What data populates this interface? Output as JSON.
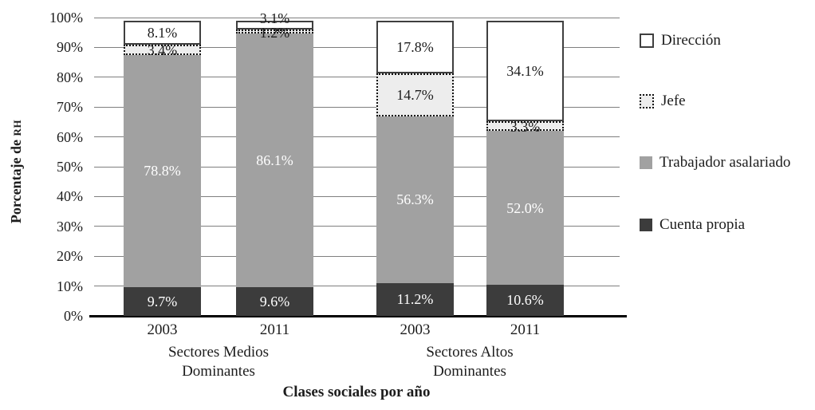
{
  "chart_data": {
    "type": "bar",
    "stacked": true,
    "title": "",
    "xlabel": "Clases sociales por año",
    "ylabel_prefix": "Porcentaje de ",
    "ylabel_smallcaps": "RH",
    "ylim": [
      0,
      100
    ],
    "grid": true,
    "legend_position": "right",
    "yticks": [
      {
        "v": 0,
        "label": "0%"
      },
      {
        "v": 10,
        "label": "10%"
      },
      {
        "v": 20,
        "label": "20%"
      },
      {
        "v": 30,
        "label": "30%"
      },
      {
        "v": 40,
        "label": "40%"
      },
      {
        "v": 50,
        "label": "50%"
      },
      {
        "v": 60,
        "label": "60%"
      },
      {
        "v": 70,
        "label": "70%"
      },
      {
        "v": 80,
        "label": "80%"
      },
      {
        "v": 90,
        "label": "90%"
      },
      {
        "v": 100,
        "label": "100%"
      }
    ],
    "categories": [
      "2003",
      "2011",
      "2003",
      "2011"
    ],
    "group_labels": [
      {
        "lines": [
          "Sectores Medios",
          "Dominantes"
        ]
      },
      {
        "lines": [
          "Sectores Altos",
          "Dominantes"
        ]
      }
    ],
    "series": [
      {
        "name": "Cuenta propia",
        "fill": "#3c3c3c",
        "border": "none",
        "label_color": "#ffffff",
        "values": [
          9.7,
          9.6,
          11.2,
          10.6
        ],
        "labels": [
          "9.7%",
          "9.6%",
          "11.2%",
          "10.6%"
        ]
      },
      {
        "name": "Trabajador asalariado",
        "fill": "#a1a1a1",
        "border": "none",
        "label_color": "#ffffff",
        "values": [
          78.8,
          86.1,
          56.3,
          52.0
        ],
        "labels": [
          "78.8%",
          "86.1%",
          "56.3%",
          "52.0%"
        ]
      },
      {
        "name": "Jefe",
        "fill": "#ededed",
        "border": "dotted",
        "label_color": "#1c1c1c",
        "values": [
          3.4,
          1.2,
          14.7,
          3.3
        ],
        "labels": [
          "3.4%",
          "1.2%",
          "14.7%",
          "3.3%"
        ]
      },
      {
        "name": "Dirección",
        "fill": "#ffffff",
        "border": "solid",
        "label_color": "#1c1c1c",
        "values": [
          8.1,
          3.1,
          17.8,
          34.1
        ],
        "labels": [
          "8.1%",
          "3.1%",
          "17.8%",
          "34.1%"
        ]
      }
    ],
    "legend_order": [
      "Dirección",
      "Jefe",
      "Trabajador asalariado",
      "Cuenta propia"
    ],
    "colors": {
      "gridline": "#7f7f7f",
      "axis": "#000000",
      "text": "#1c1c1c",
      "border_dark": "#3f3f3f"
    }
  }
}
